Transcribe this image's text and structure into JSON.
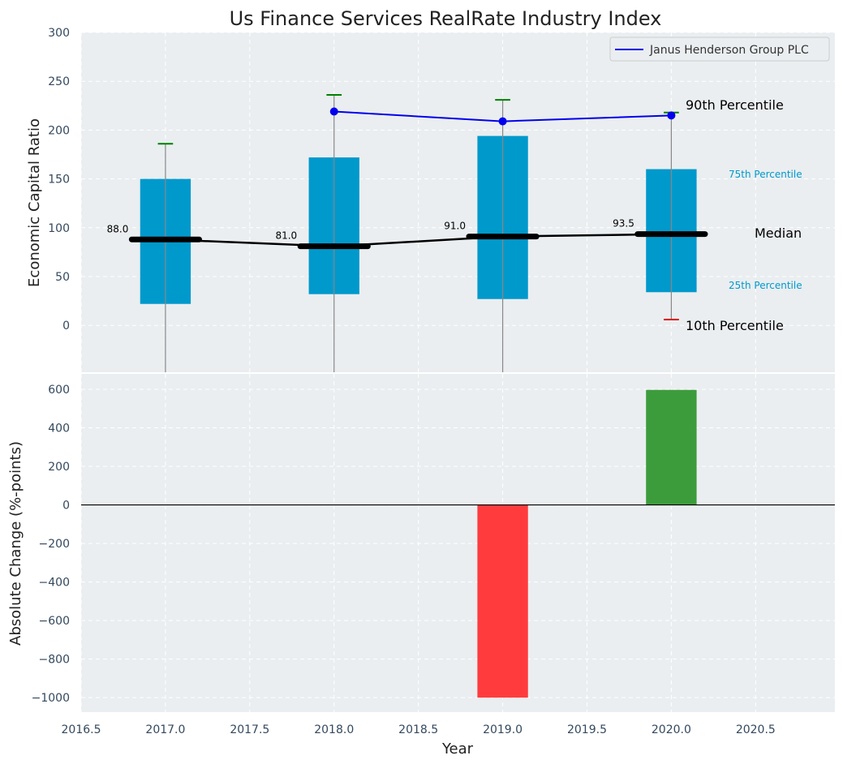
{
  "chart_data": [
    {
      "type": "box",
      "title": "Us Finance Services RealRate Industry Index",
      "xlabel": "",
      "ylabel": "Economic Capital Ratio",
      "xlim": [
        2016.5,
        2020.97
      ],
      "ylim": [
        -48,
        300
      ],
      "yticks": [
        0,
        50,
        100,
        150,
        200,
        250,
        300
      ],
      "grid": true,
      "legend": {
        "label": "Janus Henderson Group PLC",
        "color": "#0000ee",
        "position": "top-right"
      },
      "years": [
        2017,
        2018,
        2019,
        2020
      ],
      "p25": [
        22,
        32,
        27,
        34
      ],
      "p75": [
        150,
        172,
        194,
        160
      ],
      "median": [
        88.0,
        81.0,
        91.0,
        93.5
      ],
      "median_labels": [
        "88.0",
        "81.0",
        "91.0",
        "93.5"
      ],
      "p90": [
        186,
        236,
        231,
        218
      ],
      "p10": [
        null,
        null,
        null,
        6
      ],
      "company_years": [
        2018,
        2019,
        2020
      ],
      "company_values": [
        219,
        209,
        215
      ],
      "annotations": {
        "p90": "90th Percentile",
        "p75": "75th Percentile",
        "median": "Median",
        "p25": "25th Percentile",
        "p10": "10th Percentile"
      },
      "colors": {
        "box": "#0099cc",
        "p90": "#008000",
        "p10": "#dd0000",
        "median": "#000000",
        "company": "#0000ee",
        "p_label": "#0099cc"
      }
    },
    {
      "type": "bar",
      "title": "",
      "xlabel": "Year",
      "ylabel": "Absolute Change (%-points)",
      "xlim": [
        2016.5,
        2020.97
      ],
      "ylim": [
        -1075,
        680
      ],
      "yticks": [
        -1000,
        -800,
        -600,
        -400,
        -200,
        0,
        200,
        400,
        600
      ],
      "ytick_labels": [
        "−1000",
        "−800",
        "−600",
        "−400",
        "−200",
        "0",
        "200",
        "400",
        "600"
      ],
      "xticks": [
        2016.5,
        2017.0,
        2017.5,
        2018.0,
        2018.5,
        2019.0,
        2019.5,
        2020.0,
        2020.5
      ],
      "xtick_labels": [
        "2016.5",
        "2017.0",
        "2017.5",
        "2018.0",
        "2018.5",
        "2019.0",
        "2019.5",
        "2020.0",
        "2020.5"
      ],
      "x": [
        2019,
        2020
      ],
      "values": [
        -1000,
        597
      ],
      "colors": {
        "negative": "#ff3b3e",
        "positive": "#3c9c3c"
      }
    }
  ]
}
